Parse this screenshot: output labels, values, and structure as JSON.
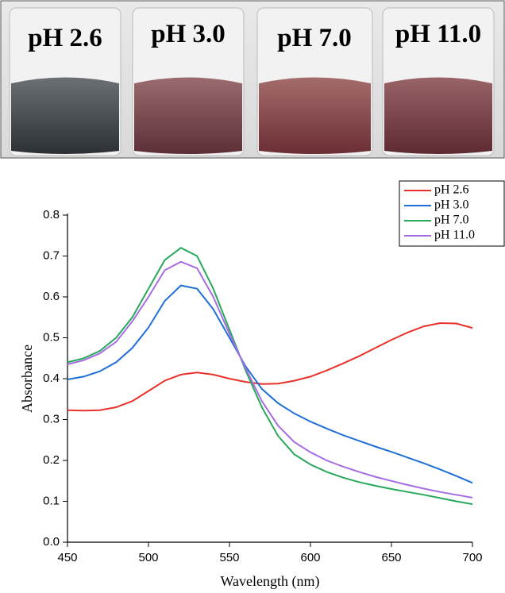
{
  "photo": {
    "labels": [
      "pH 2.6",
      "pH 3.0",
      "pH 7.0",
      "pH 11.0"
    ]
  },
  "chart_data": {
    "type": "line",
    "x_label": "Wavelength (nm)",
    "y_label": "Absorbance",
    "x": [
      450,
      460,
      470,
      480,
      490,
      500,
      510,
      520,
      530,
      540,
      550,
      560,
      570,
      580,
      590,
      600,
      610,
      620,
      630,
      640,
      650,
      660,
      670,
      680,
      690,
      700
    ],
    "series": [
      {
        "name": "pH 2.6",
        "color": "#e8312a",
        "values": [
          0.323,
          0.322,
          0.323,
          0.33,
          0.345,
          0.37,
          0.395,
          0.41,
          0.415,
          0.41,
          0.4,
          0.392,
          0.387,
          0.388,
          0.395,
          0.405,
          0.42,
          0.437,
          0.455,
          0.475,
          0.495,
          0.513,
          0.528,
          0.536,
          0.535,
          0.524
        ]
      },
      {
        "name": "pH 3.0",
        "color": "#1f6fd6",
        "values": [
          0.398,
          0.405,
          0.418,
          0.44,
          0.475,
          0.525,
          0.59,
          0.628,
          0.62,
          0.57,
          0.5,
          0.43,
          0.375,
          0.34,
          0.315,
          0.295,
          0.278,
          0.262,
          0.248,
          0.234,
          0.221,
          0.207,
          0.193,
          0.178,
          0.162,
          0.145
        ]
      },
      {
        "name": "pH 7.0",
        "color": "#27a85a",
        "values": [
          0.44,
          0.45,
          0.468,
          0.5,
          0.55,
          0.62,
          0.69,
          0.72,
          0.7,
          0.62,
          0.52,
          0.42,
          0.33,
          0.26,
          0.215,
          0.19,
          0.172,
          0.158,
          0.147,
          0.138,
          0.13,
          0.123,
          0.116,
          0.108,
          0.1,
          0.093
        ]
      },
      {
        "name": "pH 11.0",
        "color": "#a56de2",
        "values": [
          0.435,
          0.445,
          0.462,
          0.49,
          0.54,
          0.6,
          0.665,
          0.686,
          0.67,
          0.6,
          0.51,
          0.425,
          0.345,
          0.285,
          0.245,
          0.22,
          0.2,
          0.185,
          0.172,
          0.16,
          0.15,
          0.14,
          0.131,
          0.123,
          0.116,
          0.109
        ]
      }
    ],
    "xlim": [
      450,
      700
    ],
    "xticks": [
      450,
      500,
      550,
      600,
      650,
      700
    ],
    "ylim": [
      0,
      0.8
    ],
    "yticks": [
      {
        "value": 0,
        "label": "0.0"
      },
      0.1,
      0.2,
      0.3,
      0.4,
      0.5,
      0.6,
      0.7,
      0.8
    ],
    "legend": "upper right"
  }
}
